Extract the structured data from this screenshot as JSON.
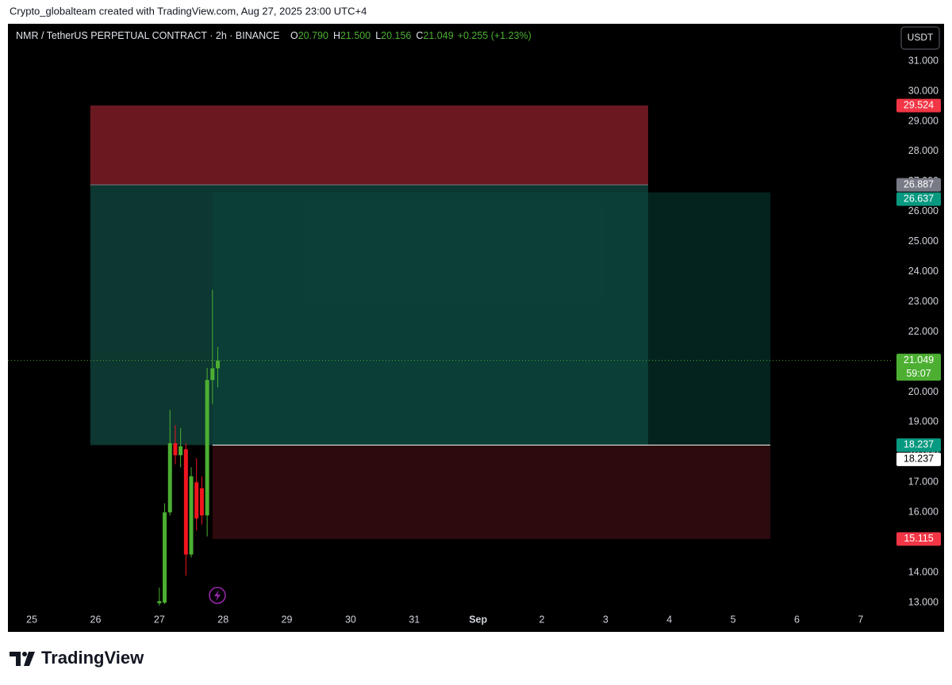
{
  "header": {
    "credit": "Crypto_globalteam created with TradingView.com, Aug 27, 2025 23:00 UTC+4"
  },
  "footer": {
    "brand": "TradingView"
  },
  "chart_data": {
    "type": "candlestick",
    "title": "NMR / TetherUS PERPETUAL CONTRACT · 2h · BINANCE",
    "ohlc_legend": [
      {
        "key": "O",
        "value": "20.790"
      },
      {
        "key": "H",
        "value": "21.500"
      },
      {
        "key": "L",
        "value": "20.156"
      },
      {
        "key": "C",
        "value": "21.049"
      }
    ],
    "change": "+0.255 (+1.23%)",
    "currency": "USDT",
    "countdown": "59:07",
    "x": [
      "2025-08-27T00:00",
      "2025-08-27T02:00",
      "2025-08-27T04:00",
      "2025-08-27T06:00",
      "2025-08-27T08:00",
      "2025-08-27T10:00",
      "2025-08-27T12:00",
      "2025-08-27T14:00",
      "2025-08-27T16:00",
      "2025-08-27T18:00",
      "2025-08-27T20:00",
      "2025-08-27T22:00"
    ],
    "open": [
      12.98,
      13.0,
      16.0,
      18.3,
      17.9,
      18.1,
      14.6,
      17.0,
      16.8,
      15.9,
      20.4,
      20.79
    ],
    "high": [
      13.5,
      16.3,
      19.4,
      18.9,
      18.8,
      18.3,
      17.5,
      17.8,
      17.2,
      20.8,
      23.4,
      21.5
    ],
    "low": [
      12.9,
      12.95,
      15.9,
      17.6,
      17.5,
      13.9,
      14.5,
      15.4,
      15.6,
      15.2,
      19.6,
      20.156
    ],
    "close": [
      13.05,
      16.0,
      18.3,
      17.9,
      18.2,
      14.6,
      17.2,
      15.8,
      15.9,
      20.4,
      20.79,
      21.049
    ],
    "up_color": "#4caf32",
    "down_color": "#f0141e",
    "xlim": [
      "2025-08-24T15:00",
      "2025-09-07T12:00"
    ],
    "xticks": [
      {
        "value": "2025-08-25T00:00",
        "label": "25"
      },
      {
        "value": "2025-08-26T00:00",
        "label": "26"
      },
      {
        "value": "2025-08-27T00:00",
        "label": "27"
      },
      {
        "value": "2025-08-28T00:00",
        "label": "28"
      },
      {
        "value": "2025-08-29T00:00",
        "label": "29"
      },
      {
        "value": "2025-08-30T00:00",
        "label": "30"
      },
      {
        "value": "2025-08-31T00:00",
        "label": "31"
      },
      {
        "value": "2025-09-01T00:00",
        "label": "Sep"
      },
      {
        "value": "2025-09-02T00:00",
        "label": "2"
      },
      {
        "value": "2025-09-03T00:00",
        "label": "3"
      },
      {
        "value": "2025-09-04T00:00",
        "label": "4"
      },
      {
        "value": "2025-09-05T00:00",
        "label": "5"
      },
      {
        "value": "2025-09-06T00:00",
        "label": "6"
      },
      {
        "value": "2025-09-07T00:00",
        "label": "7"
      }
    ],
    "ylim": [
      12.74,
      32.24
    ],
    "yticks": [
      {
        "value": 13,
        "label": "13.000"
      },
      {
        "value": 14,
        "label": "14.000"
      },
      {
        "value": 15,
        "label": "15.000"
      },
      {
        "value": 16,
        "label": "16.000"
      },
      {
        "value": 17,
        "label": "17.000"
      },
      {
        "value": 18,
        "label": "18.000"
      },
      {
        "value": 19,
        "label": "19.000"
      },
      {
        "value": 20,
        "label": "20.000"
      },
      {
        "value": 21,
        "label": "21.000"
      },
      {
        "value": 22,
        "label": "22.000"
      },
      {
        "value": 23,
        "label": "23.000"
      },
      {
        "value": 24,
        "label": "24.000"
      },
      {
        "value": 25,
        "label": "25.000"
      },
      {
        "value": 26,
        "label": "26.000"
      },
      {
        "value": 27,
        "label": "27.000"
      },
      {
        "value": 28,
        "label": "28.000"
      },
      {
        "value": 29,
        "label": "29.000"
      },
      {
        "value": 30,
        "label": "30.000"
      },
      {
        "value": 31,
        "label": "31.000"
      }
    ],
    "grid": false,
    "positions": [
      {
        "side": "short",
        "start": "2025-08-25T22:00",
        "end": "2025-09-03T16:00",
        "entry": 26.887,
        "stop": 29.524,
        "target": 18.237,
        "stop_color": "#6b1820",
        "target_color": "rgba(26,110,98,0.5)",
        "entry_color": "#787b86"
      },
      {
        "side": "long",
        "start": "2025-08-27T20:00",
        "end": "2025-09-05T14:00",
        "entry": 18.237,
        "stop": 15.115,
        "target": 26.637,
        "stop_color": "rgba(110,25,35,0.4)",
        "target_color": "rgba(8,70,60,0.5)",
        "entry_color": "#ffffff"
      }
    ]
  }
}
